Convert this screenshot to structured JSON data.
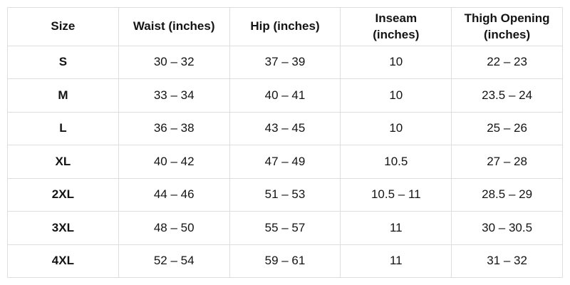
{
  "colors": {
    "background": "#ffffff",
    "border": "#dedede",
    "text": "#141414"
  },
  "display": {
    "headers": [
      "Size",
      "Waist (inches)",
      "Hip (inches)",
      "Inseam\n(inches)",
      "Thigh Opening\n(inches)"
    ]
  },
  "chart_data": {
    "type": "table",
    "columns": [
      "Size",
      "Waist (inches)",
      "Hip (inches)",
      "Inseam (inches)",
      "Thigh Opening (inches)"
    ],
    "rows": [
      [
        "S",
        "30 – 32",
        "37 – 39",
        "10",
        "22 – 23"
      ],
      [
        "M",
        "33 – 34",
        "40 – 41",
        "10",
        "23.5 – 24"
      ],
      [
        "L",
        "36 – 38",
        "43 – 45",
        "10",
        "25 – 26"
      ],
      [
        "XL",
        "40 – 42",
        "47 – 49",
        "10.5",
        "27 – 28"
      ],
      [
        "2XL",
        "44 – 46",
        "51 – 53",
        "10.5 – 11",
        "28.5 – 29"
      ],
      [
        "3XL",
        "48 – 50",
        "55 – 57",
        "11",
        "30 – 30.5"
      ],
      [
        "4XL",
        "52 – 54",
        "59 – 61",
        "11",
        "31 – 32"
      ]
    ],
    "layout": {
      "grid": true,
      "header_bold": true,
      "first_column_bold": true,
      "text_align": "center"
    }
  }
}
